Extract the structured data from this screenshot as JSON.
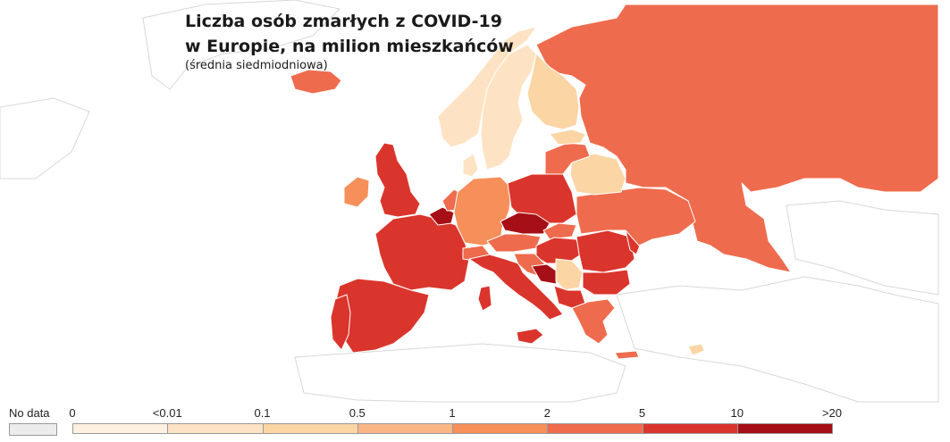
{
  "title_line1": "Liczba osób zmarłych z COVID-19",
  "title_line2": "w Europie, na milion mieszkańców",
  "subtitle": "(średnia siedmiodniowa)",
  "legend": {
    "no_data_label": "No data",
    "no_data_color": "#ececec",
    "ticks": [
      "0",
      "<0.01",
      "0.1",
      "0.5",
      "1",
      "2",
      "5",
      "10",
      ">20"
    ],
    "colors": [
      "#fef1e1",
      "#fde3c3",
      "#fcd5a5",
      "#fab786",
      "#f78f5a",
      "#ef6b4d",
      "#da352c",
      "#a50f15"
    ]
  },
  "map_colors": {
    "russia": "#ef6b4d",
    "scandinavia_light": "#fde3c3",
    "finland": "#fcd5a5",
    "iceland": "#ef6b4d",
    "uk": "#da352c",
    "ireland": "#f78f5a",
    "france": "#da352c",
    "spain_portugal": "#da352c",
    "germany": "#f78f5a",
    "poland": "#da352c",
    "czechia": "#a50f15",
    "belgium": "#a50f15",
    "ukraine": "#ef6b4d",
    "belarus": "#fcd5a5",
    "baltics": "#ef6b4d",
    "italy": "#da352c",
    "austria": "#ef6b4d",
    "hungary": "#da352c",
    "romania": "#da352c",
    "bulgaria": "#da352c",
    "serbia": "#fcd5a5",
    "bosnia": "#a50f15",
    "greece": "#ef6b4d",
    "cyprus": "#fcd5a5"
  }
}
